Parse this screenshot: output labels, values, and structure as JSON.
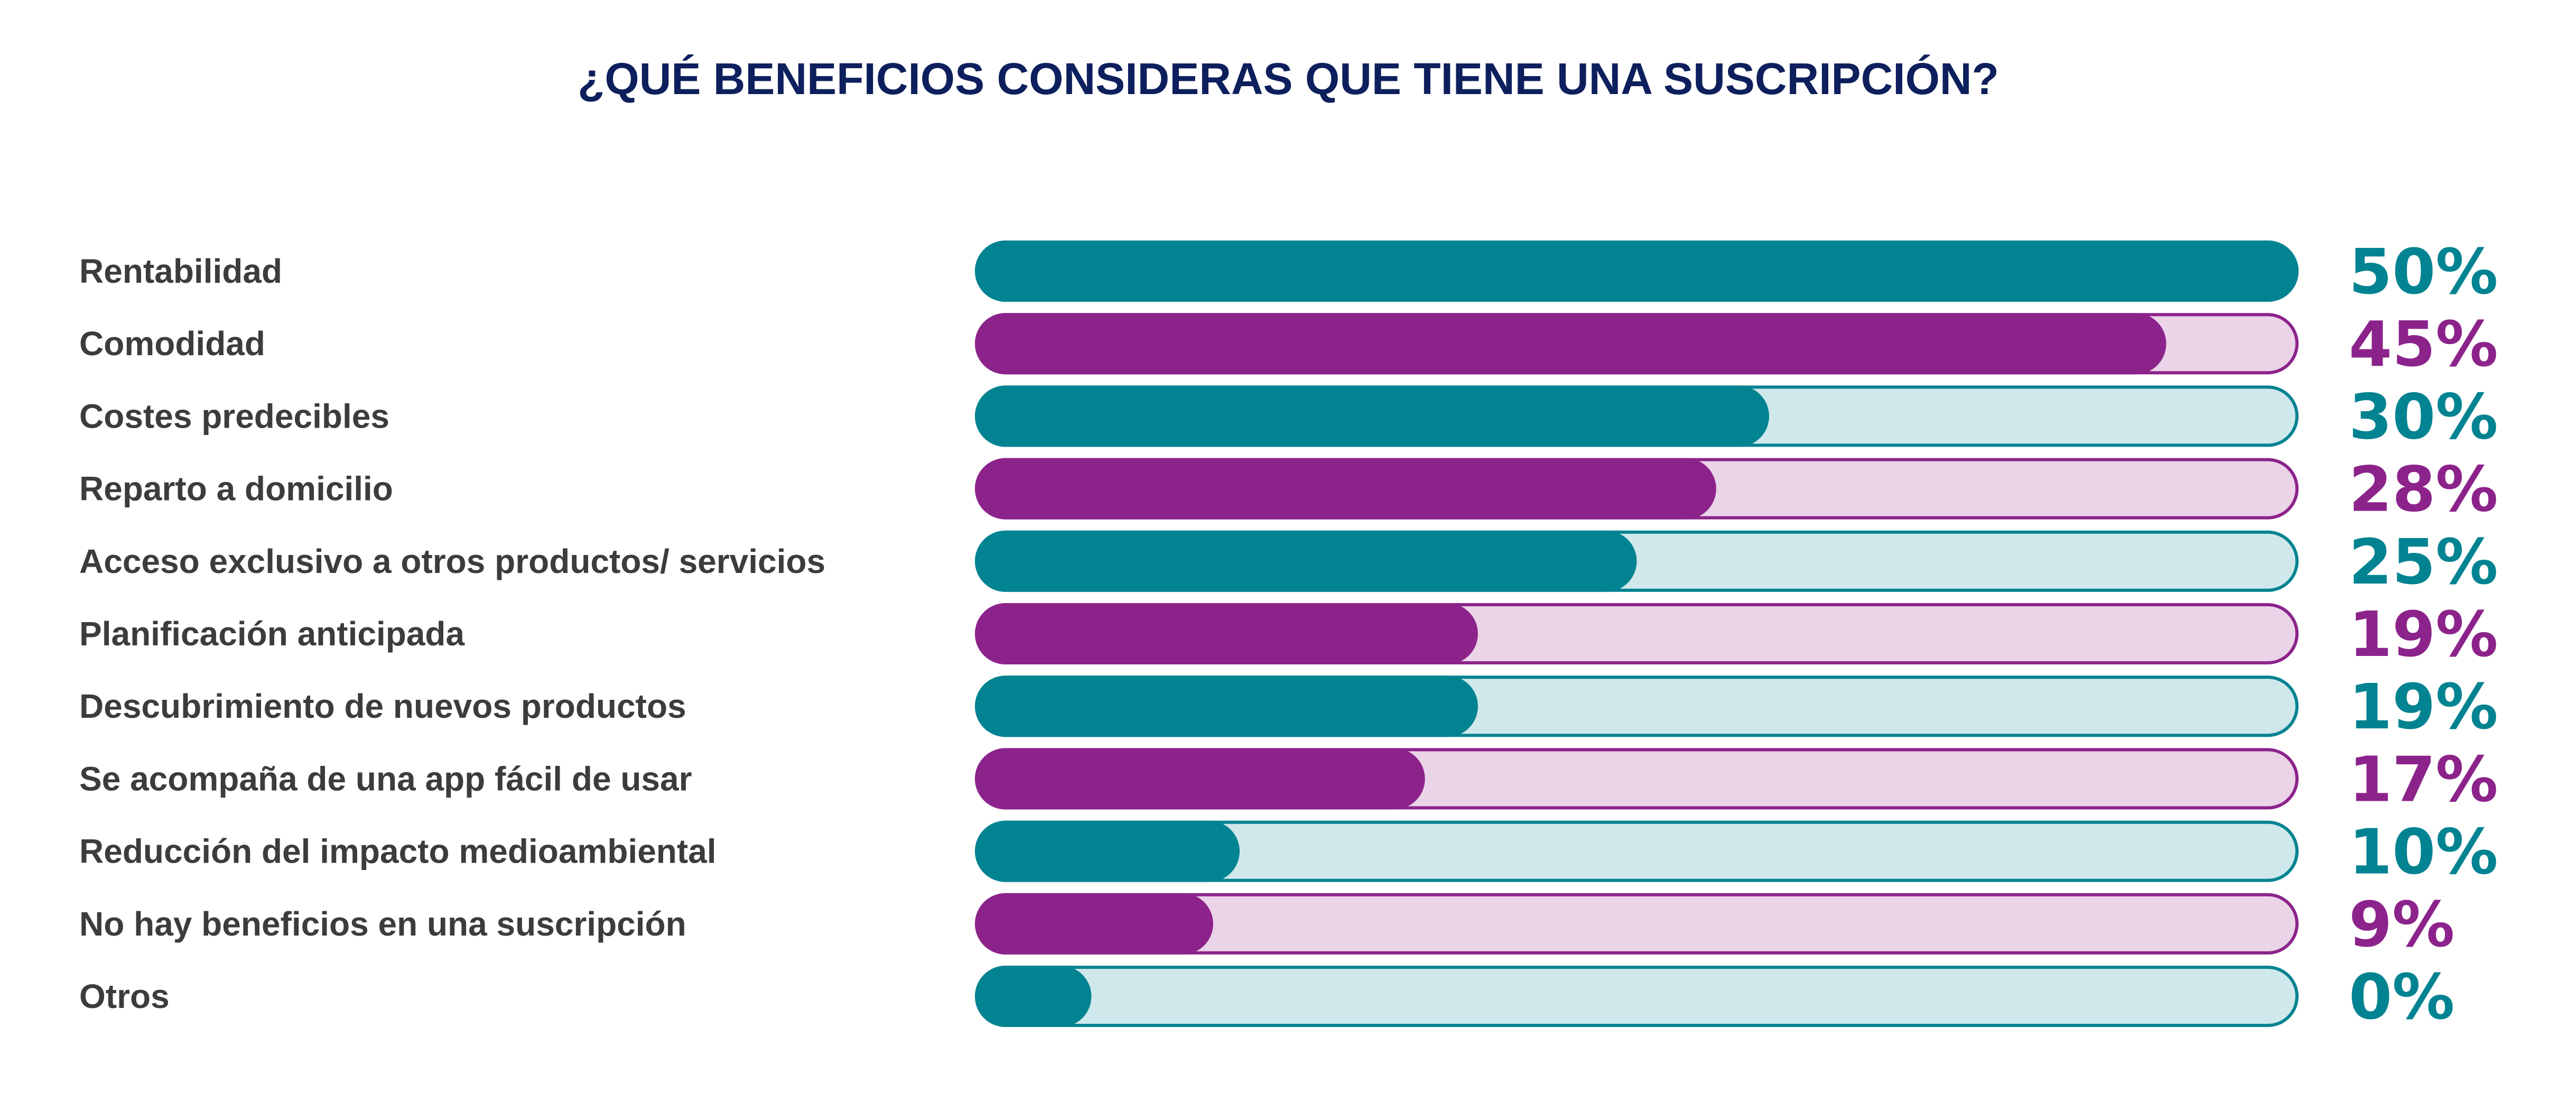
{
  "chart_data": {
    "type": "bar",
    "orientation": "horizontal",
    "title": "¿QUÉ BENEFICIOS CONSIDERAS QUE TIENE UNA SUSCRIPCIÓN?",
    "categories": [
      "Rentabilidad",
      "Comodidad",
      "Costes predecibles",
      "Reparto a domicilio",
      "Acceso exclusivo a otros productos/ servicios",
      "Planificación anticipada",
      "Descubrimiento de nuevos productos",
      "Se acompaña de una app fácil de usar",
      "Reducción del impacto medioambiental",
      "No hay beneficios en una suscripción",
      "Otros"
    ],
    "values": [
      50,
      45,
      30,
      28,
      25,
      19,
      19,
      17,
      10,
      9,
      0
    ],
    "value_labels": [
      "50%",
      "45%",
      "30%",
      "28%",
      "25%",
      "19%",
      "19%",
      "17%",
      "10%",
      "9%",
      "0%"
    ],
    "xlim": [
      0,
      50
    ],
    "unit": "%",
    "grid": false,
    "legend": "none"
  },
  "colors": {
    "title": "#0d1f5c",
    "label": "#3c3c3c",
    "teal": "#028391",
    "teal_track": "#cfe8eb",
    "purple": "#8c238b",
    "purple_track": "#ebd3e8"
  }
}
